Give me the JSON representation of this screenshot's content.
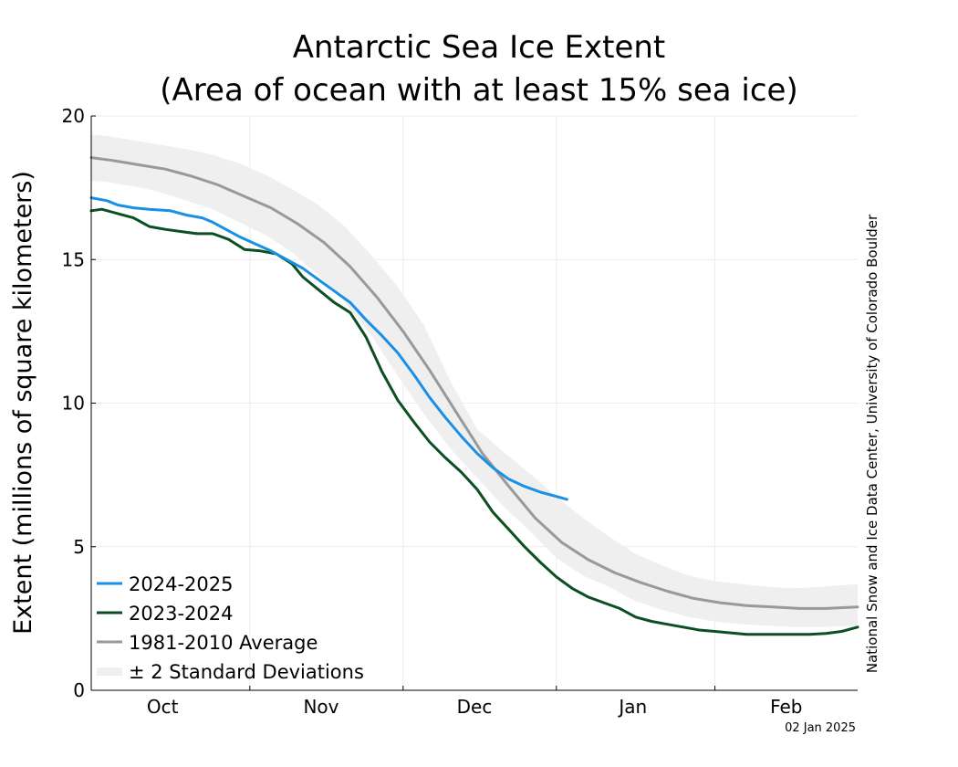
{
  "chart_data": {
    "type": "line",
    "title_line1": "Antarctic Sea Ice Extent",
    "title_line2": "(Area of ocean with at least 15% sea ice)",
    "ylabel": "Extent (millions of square kilometers)",
    "xlabel": "",
    "ylim": [
      0,
      20
    ],
    "yticks": [
      0,
      5,
      10,
      15,
      20
    ],
    "xlim": [
      0,
      145
    ],
    "x_unit": "days since Sep 19",
    "months": [
      {
        "label": "Oct",
        "tick": 30,
        "label_x": 13.5
      },
      {
        "label": "Nov",
        "tick": 59,
        "label_x": 43.5
      },
      {
        "label": "Dec",
        "tick": 88,
        "label_x": 72.5
      },
      {
        "label": "Jan",
        "tick": 118,
        "label_x": 102.5
      },
      {
        "label": "Feb",
        "tick": null,
        "label_x": 131.5
      }
    ],
    "series": [
      {
        "name": "2024-2025",
        "color": "#1a90e4",
        "x": [
          0,
          3,
          5,
          8,
          11,
          15,
          18,
          21,
          23,
          25,
          28,
          31,
          34,
          37,
          40,
          43,
          46,
          49,
          52,
          55,
          58,
          61,
          64,
          67,
          70,
          73,
          76,
          79,
          82,
          85,
          88,
          90
        ],
        "y": [
          17.15,
          17.05,
          16.9,
          16.8,
          16.75,
          16.7,
          16.55,
          16.45,
          16.3,
          16.1,
          15.8,
          15.55,
          15.3,
          15.0,
          14.7,
          14.3,
          13.9,
          13.5,
          12.9,
          12.35,
          11.75,
          11.0,
          10.2,
          9.5,
          8.85,
          8.25,
          7.75,
          7.35,
          7.1,
          6.9,
          6.75,
          6.65
        ]
      },
      {
        "name": "2023-2024",
        "color": "#0b4f22",
        "x": [
          0,
          2,
          5,
          8,
          11,
          14,
          18,
          20,
          23,
          26,
          29,
          32,
          35,
          38,
          40,
          43,
          46,
          49,
          52,
          55,
          58,
          61,
          64,
          67,
          70,
          73,
          76,
          79,
          82,
          85,
          88,
          91,
          94,
          97,
          100,
          103,
          106,
          109,
          112,
          115,
          118,
          121,
          124,
          127,
          130,
          133,
          136,
          139,
          142,
          145
        ],
        "y": [
          16.7,
          16.75,
          16.6,
          16.45,
          16.15,
          16.05,
          15.95,
          15.9,
          15.9,
          15.7,
          15.35,
          15.3,
          15.2,
          14.85,
          14.4,
          13.95,
          13.5,
          13.15,
          12.3,
          11.1,
          10.1,
          9.35,
          8.65,
          8.1,
          7.6,
          7.0,
          6.2,
          5.6,
          5.0,
          4.45,
          3.95,
          3.55,
          3.25,
          3.05,
          2.85,
          2.55,
          2.4,
          2.3,
          2.2,
          2.1,
          2.05,
          2.0,
          1.95,
          1.95,
          1.95,
          1.95,
          1.95,
          1.98,
          2.05,
          2.2
        ]
      },
      {
        "name": "1981-2010 Average",
        "color": "#999999",
        "x": [
          0,
          4,
          9,
          14,
          19,
          24,
          29,
          34,
          39,
          44,
          49,
          54,
          59,
          64,
          69,
          74,
          79,
          84,
          89,
          94,
          99,
          104,
          109,
          114,
          119,
          124,
          129,
          134,
          139,
          145
        ],
        "y": [
          18.55,
          18.45,
          18.3,
          18.15,
          17.9,
          17.6,
          17.2,
          16.8,
          16.25,
          15.6,
          14.75,
          13.7,
          12.5,
          11.15,
          9.7,
          8.25,
          7.1,
          6.0,
          5.15,
          4.55,
          4.1,
          3.75,
          3.45,
          3.2,
          3.05,
          2.95,
          2.9,
          2.85,
          2.85,
          2.9
        ]
      }
    ],
    "band": {
      "name": "± 2 Standard Deviations",
      "color": "#efefef",
      "x": [
        0,
        3,
        8,
        13,
        18,
        23,
        28,
        33,
        38,
        43,
        48,
        53,
        58,
        63,
        68,
        73,
        78,
        83,
        88,
        93,
        98,
        103,
        108,
        113,
        118,
        123,
        128,
        133,
        138,
        145
      ],
      "upper": [
        19.35,
        19.3,
        19.15,
        19.0,
        18.85,
        18.65,
        18.35,
        17.95,
        17.45,
        16.9,
        16.15,
        15.15,
        14.05,
        12.7,
        10.75,
        9.1,
        8.3,
        7.55,
        6.75,
        6.0,
        5.35,
        4.75,
        4.35,
        4.0,
        3.8,
        3.7,
        3.6,
        3.55,
        3.6,
        3.7
      ],
      "lower": [
        17.75,
        17.7,
        17.55,
        17.35,
        17.05,
        16.75,
        16.3,
        15.85,
        15.25,
        14.45,
        13.5,
        12.35,
        10.95,
        9.6,
        8.4,
        7.4,
        6.4,
        5.55,
        4.6,
        4.0,
        3.6,
        3.1,
        2.8,
        2.55,
        2.4,
        2.3,
        2.25,
        2.2,
        2.2,
        2.25
      ]
    },
    "legend": {
      "placement": "bottom-left",
      "entries": [
        "2024-2025",
        "2023-2024",
        "1981-2010 Average",
        "± 2 Standard Deviations"
      ]
    },
    "grid": true,
    "credit": "National Snow and Ice Data Center, University of Colorado Boulder",
    "date_stamp": "02 Jan 2025"
  }
}
